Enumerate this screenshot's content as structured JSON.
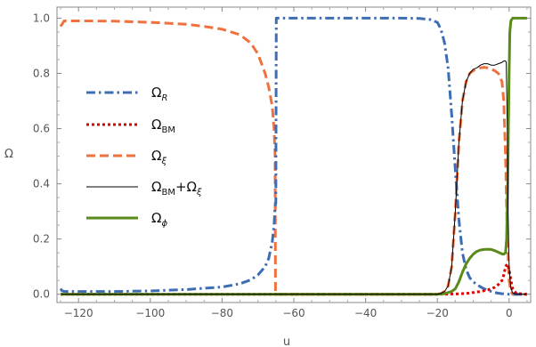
{
  "chart_data": {
    "type": "line",
    "xlabel": "u",
    "ylabel": "Ω",
    "xlim": [
      -126,
      6
    ],
    "ylim": [
      -0.03,
      1.04
    ],
    "x_ticks": [
      -120,
      -100,
      -80,
      -60,
      -40,
      -20,
      0
    ],
    "y_ticks": [
      0.0,
      0.2,
      0.4,
      0.6,
      0.8,
      1.0
    ],
    "x_tick_labels": [
      "−120",
      "−100",
      "−80",
      "−60",
      "−40",
      "−20",
      "0"
    ],
    "y_tick_labels": [
      "0.0",
      "0.2",
      "0.4",
      "0.6",
      "0.8",
      "1.0"
    ],
    "grid": false,
    "legend_position": "left",
    "series": [
      {
        "name": "Ω_R",
        "legend_main": "Ω",
        "legend_sub": "R",
        "legend_sub_italic": true,
        "color": "#3d6db3",
        "dash": "dashdot",
        "x": [
          -125,
          -124.6,
          -124,
          -120,
          -110,
          -100,
          -90,
          -80,
          -75,
          -72,
          -70,
          -68,
          -67,
          -66,
          -65.5,
          -65.2,
          -65,
          -64.9,
          -60,
          -40,
          -30,
          -25,
          -22,
          -20,
          -19,
          -18,
          -17,
          -16,
          -15,
          -14,
          -13,
          -12,
          -11,
          -10,
          -9,
          -8,
          -7,
          -6,
          -5,
          -4,
          -3,
          -2,
          -1,
          0,
          2,
          5
        ],
        "y": [
          0.02,
          0.013,
          0.01,
          0.01,
          0.01,
          0.012,
          0.017,
          0.026,
          0.038,
          0.052,
          0.07,
          0.1,
          0.13,
          0.19,
          0.25,
          0.32,
          0.33,
          1.0,
          1.0,
          1.0,
          1.0,
          0.999,
          0.995,
          0.985,
          0.96,
          0.91,
          0.82,
          0.65,
          0.45,
          0.27,
          0.15,
          0.09,
          0.06,
          0.045,
          0.035,
          0.027,
          0.02,
          0.015,
          0.01,
          0.006,
          0.004,
          0.002,
          0.001,
          0.0,
          0.0,
          0.0
        ]
      },
      {
        "name": "Ω_BM",
        "legend_main": "Ω",
        "legend_sub": "BM",
        "legend_sub_italic": false,
        "color": "#dd0000",
        "dash": "dotted",
        "x": [
          -125,
          -20,
          -15,
          -12,
          -10,
          -8,
          -6,
          -5,
          -4,
          -3,
          -2,
          -1.5,
          -1,
          -0.5,
          0,
          0.5,
          1,
          2,
          5
        ],
        "y": [
          0,
          0,
          0.001,
          0.003,
          0.006,
          0.01,
          0.015,
          0.02,
          0.025,
          0.035,
          0.05,
          0.07,
          0.1,
          0.11,
          0.09,
          0.05,
          0.02,
          0.003,
          0.0
        ]
      },
      {
        "name": "Ω_ξ",
        "legend_main": "Ω",
        "legend_sub": "ξ",
        "legend_sub_italic": true,
        "color": "#f0703e",
        "dash": "dashed",
        "x": [
          -125,
          -124,
          -120,
          -110,
          -100,
          -90,
          -85,
          -80,
          -75,
          -72,
          -70,
          -68,
          -67,
          -66,
          -65.5,
          -65.2,
          -65.1,
          -20,
          -19,
          -18,
          -17,
          -16,
          -15,
          -14,
          -13,
          -12,
          -11,
          -10,
          -9,
          -8,
          -7,
          -6,
          -5,
          -4,
          -3,
          -2,
          -1.5,
          -1,
          -0.5,
          0,
          0.5,
          1,
          2,
          5
        ],
        "y": [
          0.97,
          0.99,
          0.99,
          0.989,
          0.985,
          0.978,
          0.97,
          0.96,
          0.94,
          0.91,
          0.87,
          0.8,
          0.75,
          0.68,
          0.6,
          0.5,
          0.0,
          0.0,
          0.003,
          0.01,
          0.03,
          0.1,
          0.3,
          0.55,
          0.7,
          0.77,
          0.8,
          0.81,
          0.815,
          0.82,
          0.822,
          0.82,
          0.815,
          0.81,
          0.8,
          0.77,
          0.7,
          0.5,
          0.2,
          0.05,
          0.01,
          0.0,
          0.0,
          0.0
        ]
      },
      {
        "name": "Ω_BM+Ω_ξ",
        "legend_main": "Ω",
        "legend_sub": "BM",
        "legend_main2": "+Ω",
        "legend_sub2": "ξ",
        "legend_sub2_italic": true,
        "color": "#000000",
        "dash": "solid",
        "x": [
          -125,
          -20,
          -19,
          -18,
          -17,
          -16,
          -15,
          -14,
          -13,
          -12,
          -11,
          -10,
          -9,
          -8,
          -7,
          -6,
          -5,
          -4,
          -3,
          -2,
          -1.5,
          -1,
          -0.8,
          -0.5,
          -0.3,
          0,
          0.5,
          1,
          2,
          5
        ],
        "y": [
          0,
          0,
          0.003,
          0.01,
          0.03,
          0.1,
          0.3,
          0.55,
          0.7,
          0.77,
          0.8,
          0.815,
          0.82,
          0.83,
          0.835,
          0.835,
          0.83,
          0.83,
          0.835,
          0.84,
          0.845,
          0.845,
          0.84,
          0.6,
          0.3,
          0.1,
          0.02,
          0.005,
          0.0,
          0.0
        ]
      },
      {
        "name": "Ω_φ",
        "legend_main": "Ω",
        "legend_sub": "ϕ",
        "legend_sub_italic": true,
        "color": "#5a8a1a",
        "dash": "solid-thick",
        "x": [
          -125,
          -20,
          -18,
          -16,
          -15,
          -14,
          -13,
          -12,
          -11,
          -10,
          -9,
          -8,
          -7,
          -6,
          -5,
          -4,
          -3,
          -2,
          -1.5,
          -1,
          -0.7,
          -0.4,
          -0.2,
          0,
          0.2,
          0.5,
          1,
          2,
          5
        ],
        "y": [
          0,
          0,
          0.002,
          0.01,
          0.02,
          0.045,
          0.08,
          0.11,
          0.13,
          0.145,
          0.155,
          0.16,
          0.162,
          0.163,
          0.162,
          0.158,
          0.152,
          0.146,
          0.145,
          0.15,
          0.2,
          0.4,
          0.6,
          0.8,
          0.95,
          0.99,
          1.0,
          1.0,
          1.0
        ]
      }
    ]
  }
}
